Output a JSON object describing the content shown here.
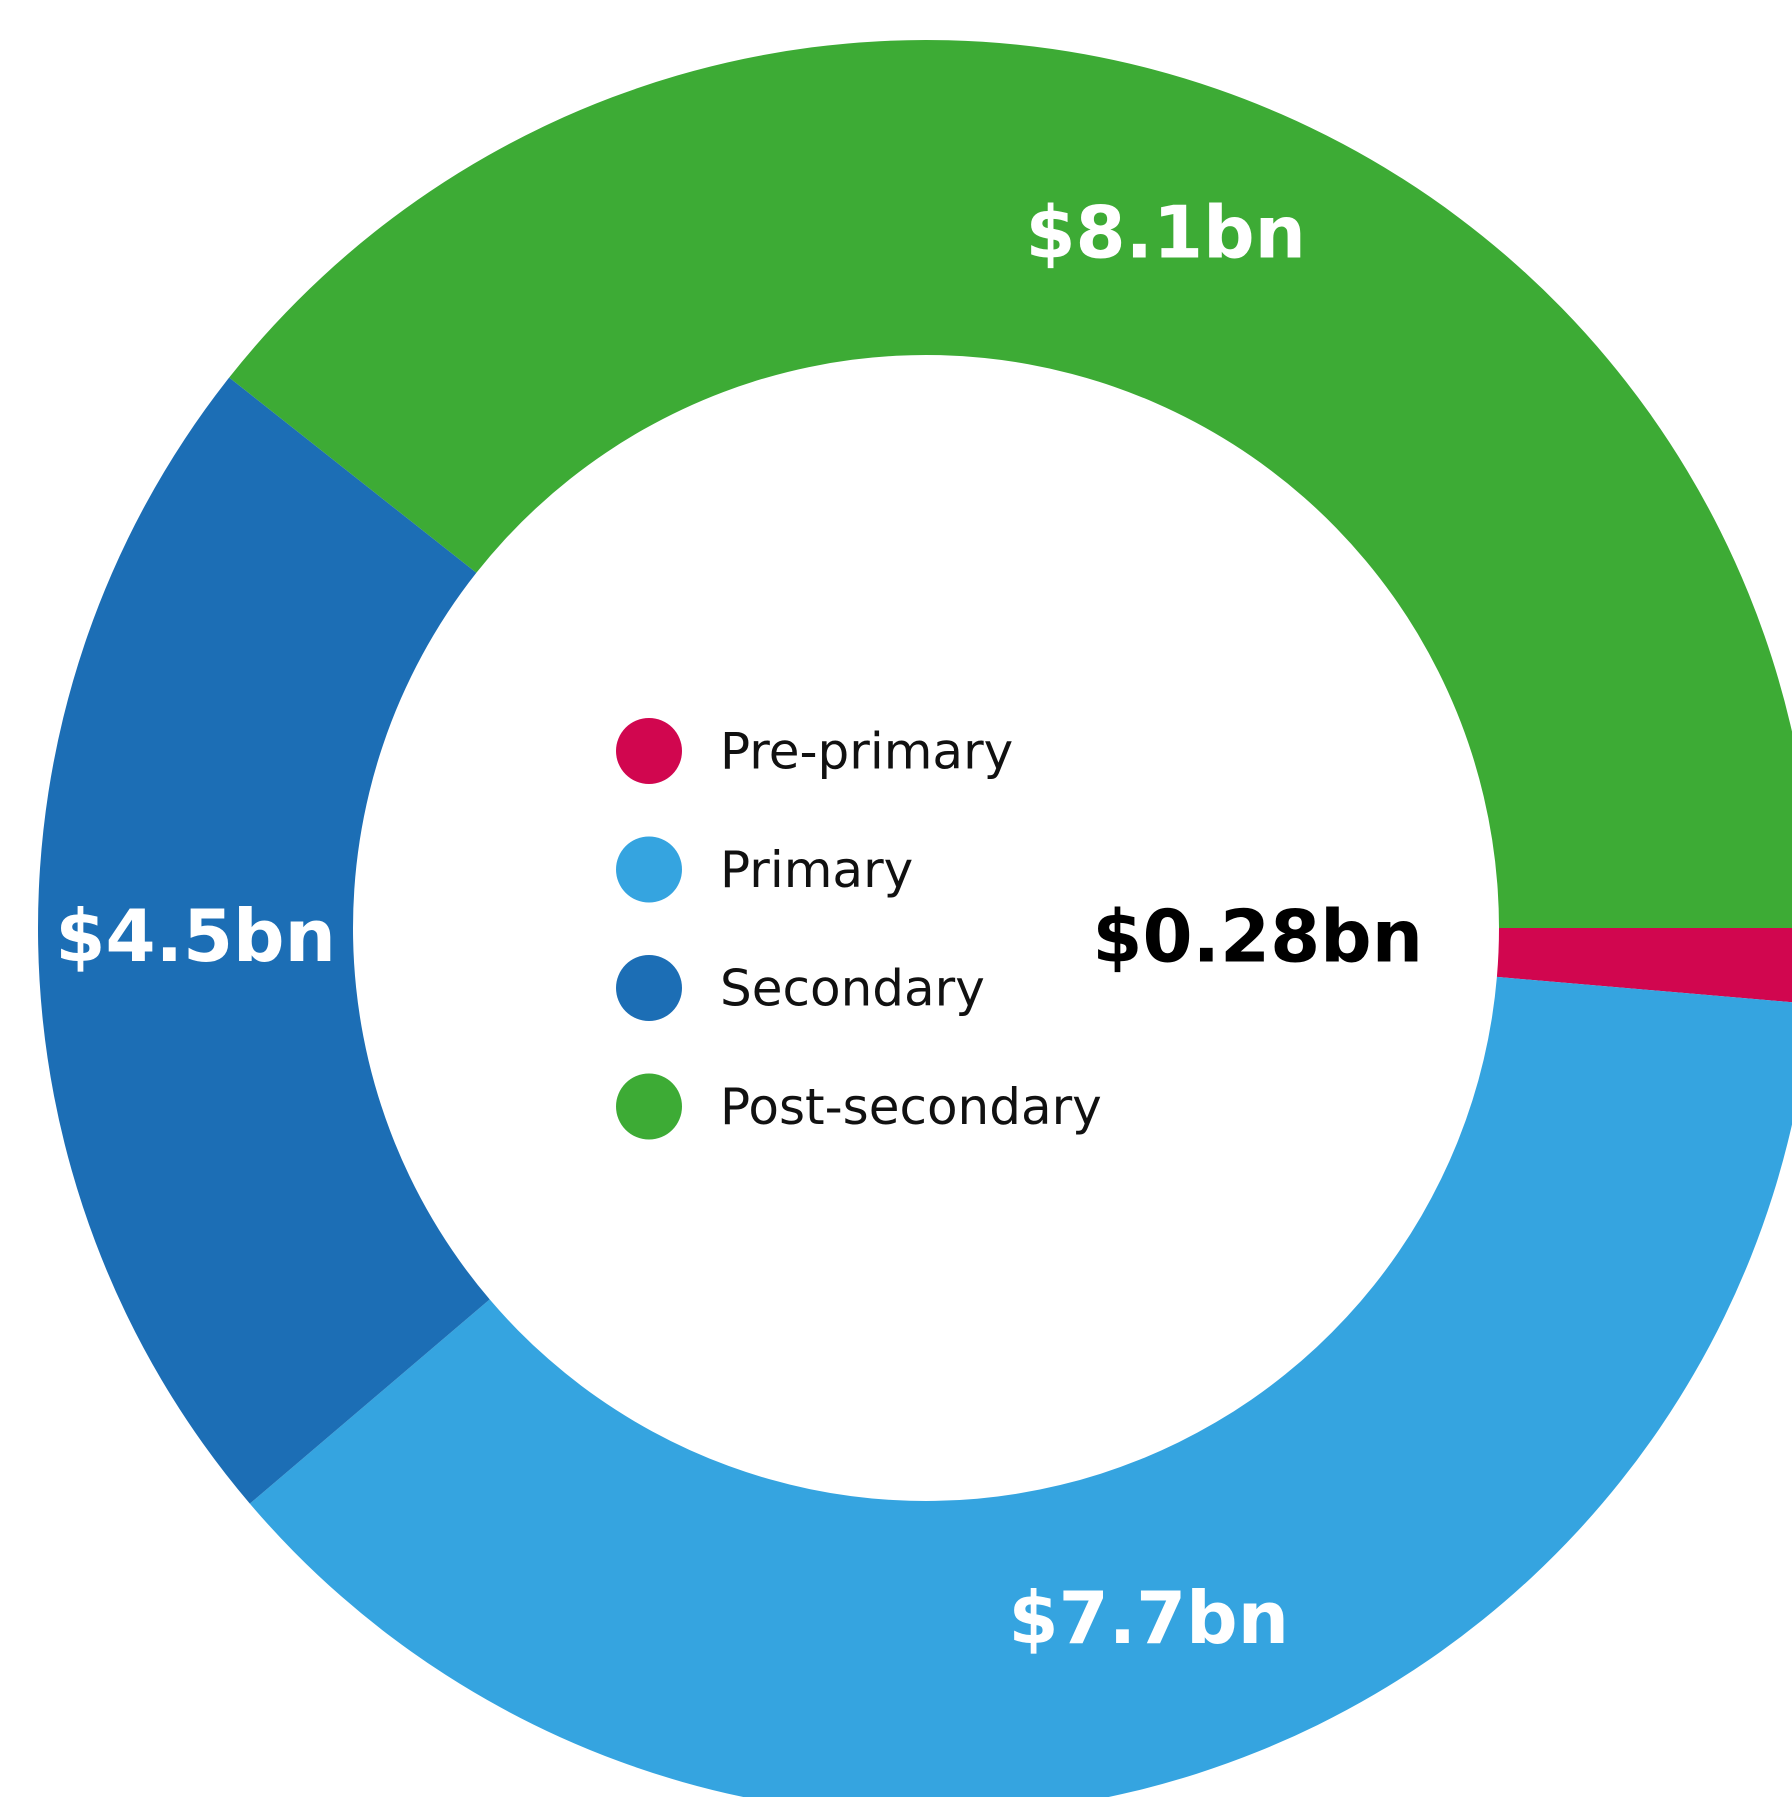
{
  "chart_data": {
    "type": "donut",
    "categories": [
      "Pre-primary",
      "Primary",
      "Secondary",
      "Post-secondary"
    ],
    "values": [
      0.28,
      7.7,
      4.5,
      8.1
    ],
    "value_labels": [
      "$0.28bn",
      "$7.7bn",
      "$4.5bn",
      "$8.1bn"
    ],
    "colors": [
      "#d1064f",
      "#35a4e0",
      "#1c6eb5",
      "#3dab35"
    ]
  }
}
